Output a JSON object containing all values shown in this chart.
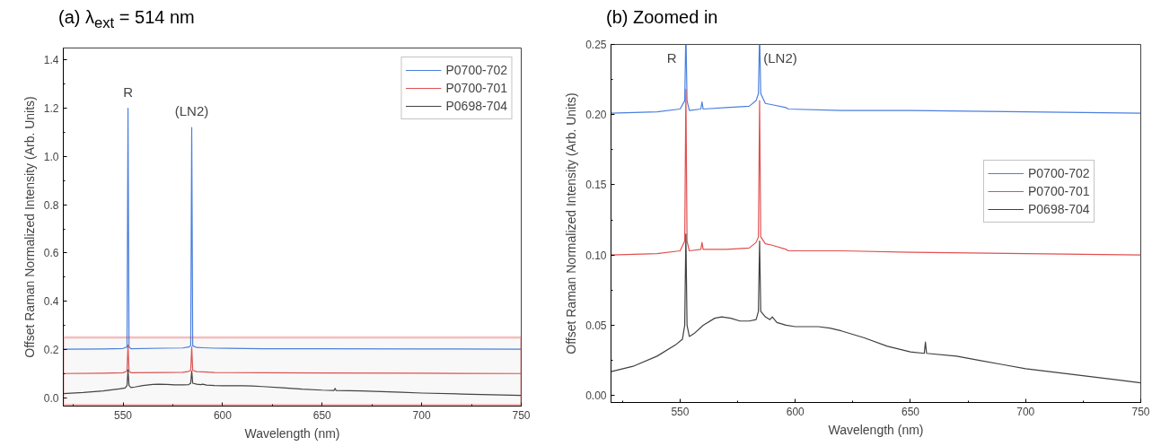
{
  "chart_data": [
    {
      "type": "line",
      "title": "(a)  λ$_{ext}$ = 514 nm",
      "xlabel": "Wavelength (nm)",
      "ylabel": "Offset Raman Normalized Intensity (Arb. Units)",
      "xlim": [
        520,
        750
      ],
      "ylim": [
        -0.035,
        1.45
      ],
      "xticks": [
        550,
        600,
        650,
        700,
        750
      ],
      "yticks": [
        {
          "value": 0,
          "label": "0.0"
        },
        0.2,
        0.4,
        0.6,
        0.8,
        {
          "value": 1,
          "label": "1.0"
        },
        1.2,
        1.4
      ],
      "grid": false,
      "legend": "top right",
      "bands": [
        {
          "axis": "y",
          "from": -0.03,
          "to": 0.25,
          "color": "#e0302a"
        }
      ],
      "annotations": [
        {
          "text": "R",
          "x": 552.5,
          "y": 1.2
        },
        {
          "text": "(LN2)",
          "x": 584.5,
          "y": 1.12
        }
      ],
      "series": [
        {
          "name": "P0700-702",
          "color": "#4a7fe0",
          "x": [
            520,
            540,
            550,
            552,
            552.5,
            553,
            554,
            570,
            580,
            583,
            584,
            584.5,
            585,
            587,
            590,
            596,
            620,
            650,
            700,
            750
          ],
          "values": [
            0.201,
            0.202,
            0.204,
            0.21,
            1.2,
            0.21,
            0.203,
            0.205,
            0.206,
            0.21,
            0.215,
            1.12,
            0.215,
            0.208,
            0.207,
            0.205,
            0.203,
            0.203,
            0.202,
            0.201
          ]
        },
        {
          "name": "P0700-701",
          "color": "#e05050",
          "x": [
            520,
            540,
            550,
            552,
            552.5,
            553,
            554,
            570,
            580,
            583,
            584,
            584.5,
            585,
            587,
            590,
            596,
            620,
            650,
            700,
            750
          ],
          "values": [
            0.1,
            0.101,
            0.103,
            0.11,
            0.218,
            0.11,
            0.103,
            0.104,
            0.105,
            0.109,
            0.113,
            0.21,
            0.113,
            0.108,
            0.107,
            0.104,
            0.103,
            0.102,
            0.101,
            0.1
          ]
        },
        {
          "name": "P0698-704",
          "color": "#404040",
          "x": [
            520,
            530,
            540,
            548,
            551,
            552,
            552.5,
            553,
            554,
            556,
            560,
            565,
            568,
            572,
            576,
            580,
            583,
            584,
            584.5,
            585,
            587,
            589,
            590,
            592,
            596,
            600,
            610,
            615,
            620,
            630,
            640,
            650,
            656,
            656.5,
            657,
            670,
            680,
            690,
            700,
            720,
            740,
            750
          ],
          "values": [
            0.017,
            0.021,
            0.028,
            0.036,
            0.04,
            0.05,
            0.115,
            0.05,
            0.042,
            0.044,
            0.05,
            0.055,
            0.056,
            0.055,
            0.053,
            0.053,
            0.054,
            0.06,
            0.11,
            0.06,
            0.056,
            0.054,
            0.056,
            0.052,
            0.05,
            0.049,
            0.049,
            0.048,
            0.046,
            0.041,
            0.035,
            0.031,
            0.03,
            0.038,
            0.03,
            0.028,
            0.025,
            0.022,
            0.019,
            0.015,
            0.011,
            0.009
          ]
        }
      ]
    },
    {
      "type": "line",
      "title": "(b)  Zoomed in",
      "xlabel": "Wavelength (nm)",
      "ylabel": "Offset Raman Normalized Intensity (Arb. Units)",
      "xlim": [
        520,
        750
      ],
      "ylim": [
        -0.005,
        0.25
      ],
      "xticks": [
        550,
        600,
        650,
        700,
        750
      ],
      "yticks": [
        {
          "value": 0,
          "label": "0.00"
        },
        0.05,
        {
          "value": 0.1,
          "label": "0.10"
        },
        0.15,
        {
          "value": 0.2,
          "label": "0.20"
        },
        0.25
      ],
      "grid": false,
      "legend": "right",
      "annotations": [
        {
          "text": "R",
          "x": 552.4,
          "y": 0.25
        },
        {
          "text": "(LN2)",
          "x": 584.6,
          "y": 0.25
        }
      ],
      "series": [
        {
          "name": "P0700-702",
          "color": "#4a7fe0",
          "x": [
            520,
            540,
            550,
            552,
            552.4,
            552.5,
            552.6,
            553,
            554,
            559,
            559.5,
            560,
            570,
            580,
            583,
            584,
            584.4,
            584.5,
            584.6,
            585,
            587,
            590,
            596,
            597,
            620,
            650,
            700,
            750
          ],
          "values": [
            0.201,
            0.202,
            0.204,
            0.21,
            0.25,
            null,
            0.25,
            0.21,
            0.203,
            0.204,
            0.209,
            0.204,
            0.205,
            0.206,
            0.21,
            0.215,
            0.25,
            null,
            0.25,
            0.215,
            0.208,
            0.207,
            0.205,
            0.204,
            0.203,
            0.203,
            0.202,
            0.201
          ]
        },
        {
          "name": "P0700-701",
          "color": "#e05050",
          "x": [
            520,
            540,
            550,
            552,
            552.5,
            553,
            554,
            559,
            559.5,
            560,
            570,
            580,
            583,
            584,
            584.5,
            585,
            587,
            590,
            596,
            597,
            620,
            650,
            700,
            750
          ],
          "values": [
            0.1,
            0.101,
            0.103,
            0.11,
            0.218,
            0.11,
            0.103,
            0.104,
            0.109,
            0.104,
            0.104,
            0.105,
            0.109,
            0.113,
            0.21,
            0.113,
            0.108,
            0.107,
            0.104,
            0.103,
            0.103,
            0.102,
            0.101,
            0.1
          ]
        },
        {
          "name": "P0698-704",
          "color": "#404040",
          "x": [
            520,
            530,
            540,
            548,
            551,
            552,
            552.5,
            553,
            554,
            556,
            560,
            565,
            568,
            572,
            576,
            580,
            583,
            584,
            584.5,
            585,
            587,
            589,
            590,
            592,
            596,
            600,
            610,
            615,
            620,
            630,
            640,
            650,
            656,
            656.5,
            657,
            670,
            680,
            690,
            700,
            720,
            740,
            750
          ],
          "values": [
            0.017,
            0.021,
            0.028,
            0.036,
            0.04,
            0.05,
            0.115,
            0.05,
            0.042,
            0.044,
            0.05,
            0.055,
            0.056,
            0.055,
            0.053,
            0.053,
            0.054,
            0.06,
            0.11,
            0.06,
            0.056,
            0.054,
            0.056,
            0.052,
            0.05,
            0.049,
            0.049,
            0.048,
            0.046,
            0.041,
            0.035,
            0.031,
            0.03,
            0.038,
            0.03,
            0.028,
            0.025,
            0.022,
            0.019,
            0.015,
            0.011,
            0.009
          ]
        }
      ]
    }
  ]
}
